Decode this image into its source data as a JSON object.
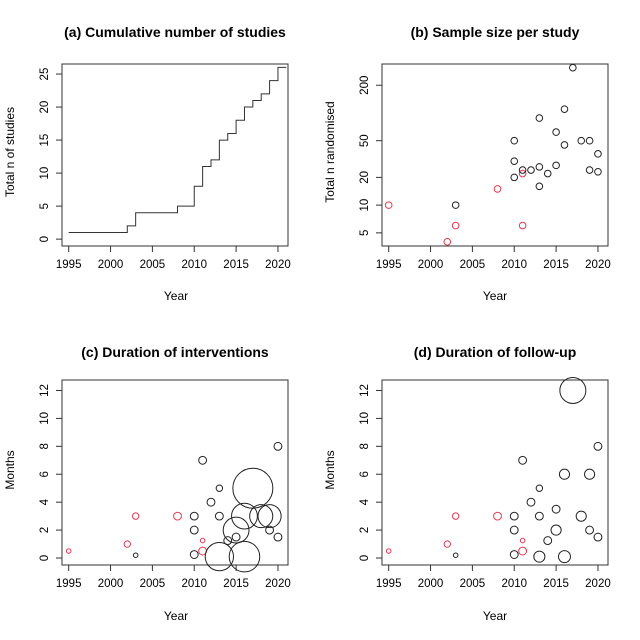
{
  "chart_data": [
    {
      "type": "line",
      "id": "a",
      "title": "(a) Cumulative number of studies",
      "xlabel": "Year",
      "ylabel": "Total n of studies",
      "xlim": [
        1995,
        2021
      ],
      "ylim": [
        0,
        26
      ],
      "xticks": [
        1995,
        2000,
        2005,
        2010,
        2015,
        2020
      ],
      "yticks": [
        0,
        5,
        10,
        15,
        20,
        25
      ],
      "series": [
        {
          "name": "cumulative",
          "step": true,
          "x": [
            1995,
            2002,
            2003,
            2008,
            2010,
            2011,
            2012,
            2013,
            2014,
            2015,
            2016,
            2017,
            2018,
            2019,
            2020,
            2021
          ],
          "y": [
            1,
            2,
            4,
            5,
            8,
            11,
            12,
            15,
            16,
            18,
            20,
            21,
            22,
            24,
            26,
            26
          ]
        }
      ]
    },
    {
      "type": "scatter",
      "id": "b",
      "title": "(b) Sample size per study",
      "xlabel": "Year",
      "ylabel": "Total n randomised",
      "xscale": "linear",
      "yscale": "log",
      "xlim": [
        1995,
        2021
      ],
      "ylim": [
        3.6,
        340
      ],
      "xticks": [
        1995,
        2000,
        2005,
        2010,
        2015,
        2020
      ],
      "yticks": [
        5,
        10,
        20,
        50,
        200
      ],
      "colors": {
        "black": "#222222",
        "red": "#e8384f"
      },
      "points": [
        {
          "x": 1995,
          "y": 10,
          "c": "red"
        },
        {
          "x": 2002,
          "y": 4,
          "c": "red"
        },
        {
          "x": 2003,
          "y": 6,
          "c": "red"
        },
        {
          "x": 2003,
          "y": 10,
          "c": "black"
        },
        {
          "x": 2008,
          "y": 15,
          "c": "red"
        },
        {
          "x": 2010,
          "y": 50,
          "c": "black"
        },
        {
          "x": 2010,
          "y": 30,
          "c": "black"
        },
        {
          "x": 2010,
          "y": 20,
          "c": "black"
        },
        {
          "x": 2011,
          "y": 22,
          "c": "red"
        },
        {
          "x": 2011,
          "y": 6,
          "c": "red"
        },
        {
          "x": 2011,
          "y": 24,
          "c": "black"
        },
        {
          "x": 2012,
          "y": 24,
          "c": "black"
        },
        {
          "x": 2013,
          "y": 26,
          "c": "black"
        },
        {
          "x": 2013,
          "y": 16,
          "c": "black"
        },
        {
          "x": 2013,
          "y": 88,
          "c": "black"
        },
        {
          "x": 2014,
          "y": 22,
          "c": "black"
        },
        {
          "x": 2015,
          "y": 62,
          "c": "black"
        },
        {
          "x": 2015,
          "y": 27,
          "c": "black"
        },
        {
          "x": 2016,
          "y": 110,
          "c": "black"
        },
        {
          "x": 2016,
          "y": 45,
          "c": "black"
        },
        {
          "x": 2017,
          "y": 310,
          "c": "black"
        },
        {
          "x": 2018,
          "y": 50,
          "c": "black"
        },
        {
          "x": 2019,
          "y": 50,
          "c": "black"
        },
        {
          "x": 2019,
          "y": 24,
          "c": "black"
        },
        {
          "x": 2020,
          "y": 36,
          "c": "black"
        },
        {
          "x": 2020,
          "y": 23,
          "c": "black"
        }
      ]
    },
    {
      "type": "scatter",
      "id": "c",
      "title": "(c) Duration of interventions",
      "xlabel": "Year",
      "ylabel": "Months",
      "xlim": [
        1995,
        2021
      ],
      "ylim": [
        0,
        12.5
      ],
      "xticks": [
        1995,
        2000,
        2005,
        2010,
        2015,
        2020
      ],
      "yticks": [
        0,
        2,
        4,
        6,
        8,
        10,
        12
      ],
      "bubble_note": "circle size proportional to months",
      "colors": {
        "black": "#222222",
        "red": "#e8384f"
      },
      "points": [
        {
          "x": 1995,
          "y": 0.5,
          "c": "red"
        },
        {
          "x": 2002,
          "y": 1.0,
          "c": "red"
        },
        {
          "x": 2003,
          "y": 3.0,
          "c": "red"
        },
        {
          "x": 2003,
          "y": 0.2,
          "c": "black"
        },
        {
          "x": 2008,
          "y": 3.0,
          "c": "red"
        },
        {
          "x": 2010,
          "y": 3.0,
          "c": "black"
        },
        {
          "x": 2010,
          "y": 2.0,
          "c": "black"
        },
        {
          "x": 2010,
          "y": 0.25,
          "c": "black"
        },
        {
          "x": 2011,
          "y": 7.0,
          "c": "black"
        },
        {
          "x": 2011,
          "y": 1.25,
          "c": "red"
        },
        {
          "x": 2011,
          "y": 0.5,
          "c": "red"
        },
        {
          "x": 2012,
          "y": 4.0,
          "c": "black"
        },
        {
          "x": 2013,
          "y": 5.0,
          "c": "black"
        },
        {
          "x": 2013,
          "y": 3.0,
          "c": "black"
        },
        {
          "x": 2013,
          "y": 0.1,
          "c": "black"
        },
        {
          "x": 2014,
          "y": 1.25,
          "c": "black"
        },
        {
          "x": 2015,
          "y": 2.0,
          "c": "black"
        },
        {
          "x": 2015,
          "y": 1.5,
          "c": "black"
        },
        {
          "x": 2016,
          "y": 3.0,
          "c": "black"
        },
        {
          "x": 2016,
          "y": 0.1,
          "c": "black"
        },
        {
          "x": 2017,
          "y": 5.0,
          "c": "black"
        },
        {
          "x": 2018,
          "y": 3.0,
          "c": "black"
        },
        {
          "x": 2019,
          "y": 3.0,
          "c": "black"
        },
        {
          "x": 2019,
          "y": 2.0,
          "c": "black"
        },
        {
          "x": 2020,
          "y": 8.0,
          "c": "black"
        },
        {
          "x": 2020,
          "y": 1.5,
          "c": "black"
        }
      ],
      "sizes": [
        0.5,
        1.0,
        1.0,
        0.5,
        1.5,
        1.5,
        1.5,
        1.5,
        1.5,
        0.5,
        1.5,
        1.5,
        1.0,
        1.5,
        3.0,
        1.5,
        2.5,
        1.5,
        2.5,
        3.5,
        6.0,
        2.0,
        2.0,
        1.5,
        1.5,
        1.5
      ]
    },
    {
      "type": "scatter",
      "id": "d",
      "title": "(d) Duration of follow-up",
      "xlabel": "Year",
      "ylabel": "Months",
      "xlim": [
        1995,
        2021
      ],
      "ylim": [
        0,
        12.5
      ],
      "xticks": [
        1995,
        2000,
        2005,
        2010,
        2015,
        2020
      ],
      "yticks": [
        0,
        2,
        4,
        6,
        8,
        10,
        12
      ],
      "bubble_note": "circle size proportional to months",
      "colors": {
        "black": "#222222",
        "red": "#e8384f"
      },
      "points": [
        {
          "x": 1995,
          "y": 0.5,
          "c": "red"
        },
        {
          "x": 2002,
          "y": 1.0,
          "c": "red"
        },
        {
          "x": 2003,
          "y": 3.0,
          "c": "red"
        },
        {
          "x": 2003,
          "y": 0.2,
          "c": "black"
        },
        {
          "x": 2008,
          "y": 3.0,
          "c": "red"
        },
        {
          "x": 2010,
          "y": 3.0,
          "c": "black"
        },
        {
          "x": 2010,
          "y": 2.0,
          "c": "black"
        },
        {
          "x": 2010,
          "y": 0.25,
          "c": "black"
        },
        {
          "x": 2011,
          "y": 7.0,
          "c": "black"
        },
        {
          "x": 2011,
          "y": 1.25,
          "c": "red"
        },
        {
          "x": 2011,
          "y": 0.5,
          "c": "red"
        },
        {
          "x": 2012,
          "y": 4.0,
          "c": "black"
        },
        {
          "x": 2013,
          "y": 5.0,
          "c": "black"
        },
        {
          "x": 2013,
          "y": 3.0,
          "c": "black"
        },
        {
          "x": 2013,
          "y": 0.1,
          "c": "black"
        },
        {
          "x": 2014,
          "y": 1.25,
          "c": "black"
        },
        {
          "x": 2015,
          "y": 3.5,
          "c": "black"
        },
        {
          "x": 2015,
          "y": 2.0,
          "c": "black"
        },
        {
          "x": 2016,
          "y": 6.0,
          "c": "black"
        },
        {
          "x": 2016,
          "y": 0.1,
          "c": "black"
        },
        {
          "x": 2017,
          "y": 12.0,
          "c": "black"
        },
        {
          "x": 2018,
          "y": 3.0,
          "c": "black"
        },
        {
          "x": 2019,
          "y": 6.0,
          "c": "black"
        },
        {
          "x": 2019,
          "y": 2.0,
          "c": "black"
        },
        {
          "x": 2020,
          "y": 8.0,
          "c": "black"
        },
        {
          "x": 2020,
          "y": 1.5,
          "c": "black"
        }
      ],
      "sizes": [
        0.5,
        1.0,
        1.0,
        0.5,
        1.5,
        1.5,
        1.5,
        1.5,
        1.5,
        0.5,
        1.5,
        1.5,
        1.0,
        1.5,
        3.0,
        1.5,
        1.5,
        2.5,
        2.5,
        3.5,
        12.0,
        2.5,
        2.5,
        1.5,
        1.5,
        1.5
      ]
    }
  ]
}
